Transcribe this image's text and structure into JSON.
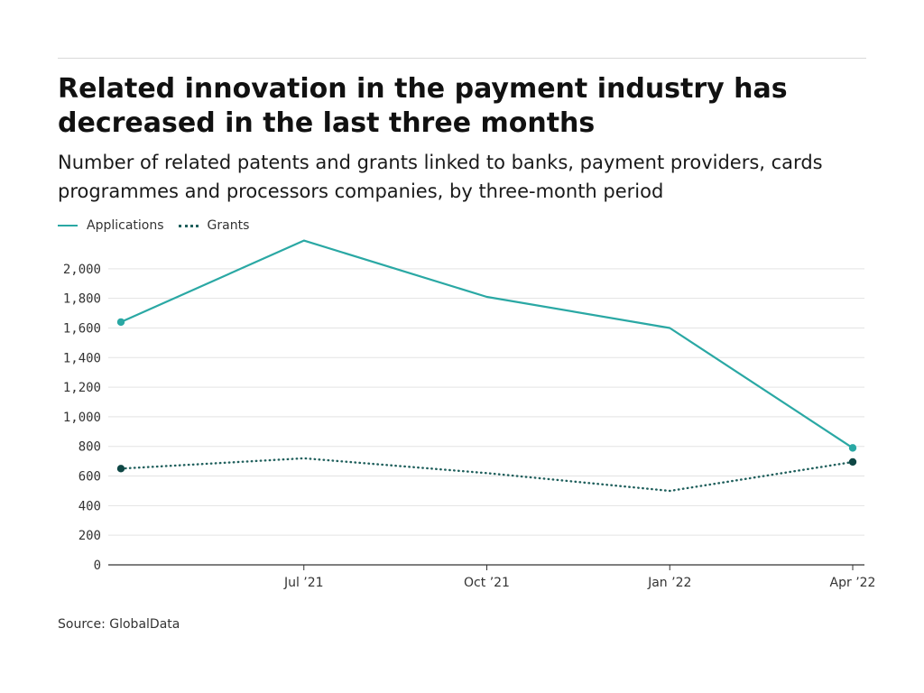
{
  "title": "Related innovation in the payment industry has decreased in the last three months",
  "subtitle": "Number of related patents and grants linked to banks, payment providers, cards programmes and processors companies, by three-month period",
  "source": "Source: GlobalData",
  "chart_data": {
    "type": "line",
    "x": [
      "2021-04",
      "2021-07",
      "2021-10",
      "2022-01",
      "2022-04"
    ],
    "x_tick_labels": [
      "Jul ’21",
      "Oct ’21",
      "Jan ’22",
      "Apr ’22"
    ],
    "x_tick_positions": [
      "2021-07",
      "2021-10",
      "2022-01",
      "2022-04"
    ],
    "ylim": [
      0,
      2200
    ],
    "y_ticks": [
      0,
      200,
      400,
      600,
      800,
      1000,
      1200,
      1400,
      1600,
      1800,
      2000
    ],
    "y_tick_labels": [
      "0",
      "200",
      "400",
      "600",
      "800",
      "1,000",
      "1,200",
      "1,400",
      "1,600",
      "1,800",
      "2,000"
    ],
    "grid": true,
    "legend_position": "top-left",
    "series": [
      {
        "name": "Applications",
        "style": "solid",
        "color": "#2aa8a4",
        "endpoint_color": "#2aa8a4",
        "values": [
          1640,
          2190,
          1810,
          1600,
          790
        ]
      },
      {
        "name": "Grants",
        "style": "dotted",
        "color": "#1f5f5c",
        "endpoint_color": "#0f4745",
        "values": [
          650,
          720,
          620,
          500,
          695
        ]
      }
    ]
  }
}
